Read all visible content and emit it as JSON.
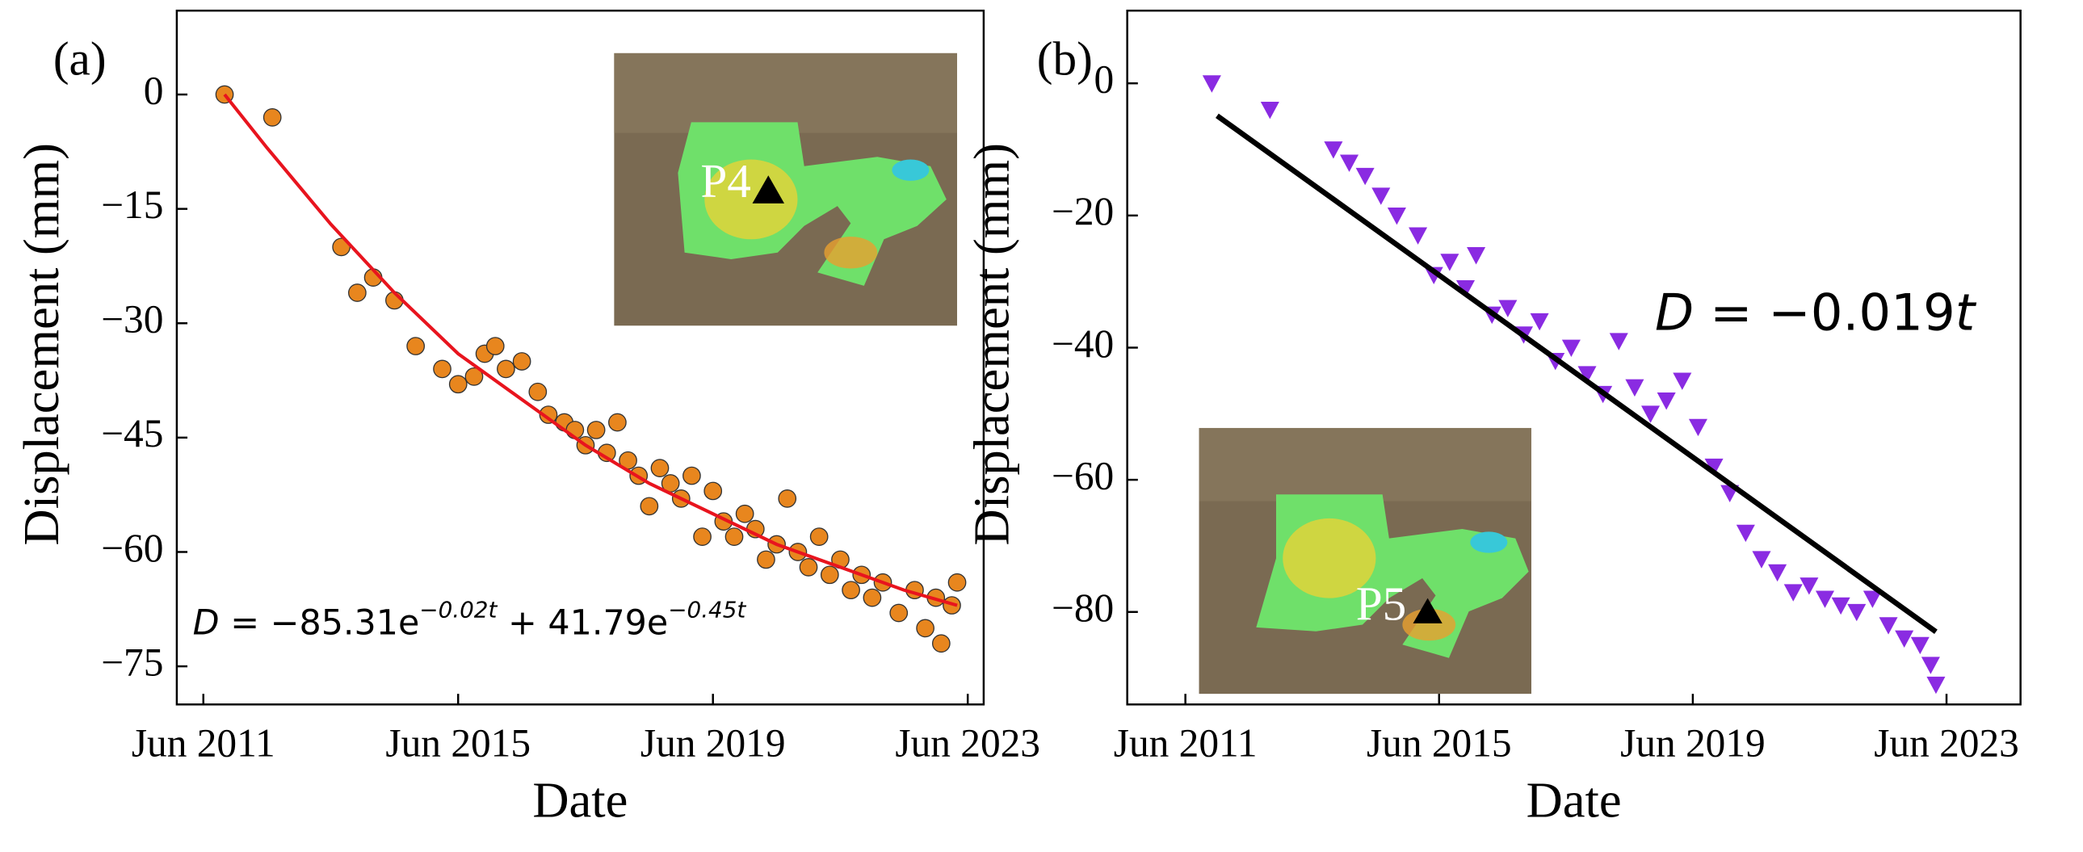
{
  "chart_data": [
    {
      "type": "scatter",
      "panel_label": "(a)",
      "x_label": "Date",
      "y_label": "Displacement (mm)",
      "xlim": [
        "2011-01",
        "2023-09"
      ],
      "ylim": [
        -80,
        11
      ],
      "xticks": [
        {
          "value": "2011-06",
          "label": "Jun 2011"
        },
        {
          "value": "2015-06",
          "label": "Jun 2015"
        },
        {
          "value": "2019-06",
          "label": "Jun 2019"
        },
        {
          "value": "2023-06",
          "label": "Jun 2023"
        }
      ],
      "yticks": [
        0,
        {
          "value": -15,
          "label": "−15"
        },
        {
          "value": -30,
          "label": "−30"
        },
        {
          "value": -45,
          "label": "−45"
        },
        {
          "value": -60,
          "label": "−60"
        },
        {
          "value": -75,
          "label": "−75"
        }
      ],
      "equation": {
        "lhs": "D",
        "rhs1": " = −85.31e",
        "exp1": "−0.02t",
        "rhs2": " + 41.79e",
        "exp2": "−0.45t"
      },
      "inset_label": "P4",
      "series": [
        {
          "type": "scatter",
          "marker": "circle",
          "color": "#e8861e",
          "x": [
            "2011-10",
            "2012-07",
            "2013-08",
            "2013-11",
            "2014-02",
            "2014-06",
            "2014-10",
            "2015-03",
            "2015-06",
            "2015-09",
            "2015-11",
            "2016-01",
            "2016-03",
            "2016-06",
            "2016-09",
            "2016-11",
            "2017-02",
            "2017-04",
            "2017-06",
            "2017-08",
            "2017-10",
            "2017-12",
            "2018-02",
            "2018-04",
            "2018-06",
            "2018-08",
            "2018-10",
            "2018-12",
            "2019-02",
            "2019-04",
            "2019-06",
            "2019-08",
            "2019-10",
            "2019-12",
            "2020-02",
            "2020-04",
            "2020-06",
            "2020-08",
            "2020-10",
            "2020-12",
            "2021-02",
            "2021-04",
            "2021-06",
            "2021-08",
            "2021-10",
            "2021-12",
            "2022-02",
            "2022-05",
            "2022-08",
            "2022-10",
            "2022-12",
            "2023-01",
            "2023-03",
            "2023-04"
          ],
          "values": [
            0,
            -3,
            -20,
            -26,
            -24,
            -27,
            -33,
            -36,
            -38,
            -37,
            -34,
            -33,
            -36,
            -35,
            -39,
            -42,
            -43,
            -44,
            -46,
            -44,
            -47,
            -43,
            -48,
            -50,
            -54,
            -49,
            -51,
            -53,
            -50,
            -58,
            -52,
            -56,
            -58,
            -55,
            -57,
            -61,
            -59,
            -53,
            -60,
            -62,
            -58,
            -63,
            -61,
            -65,
            -63,
            -66,
            -64,
            -68,
            -65,
            -70,
            -66,
            -72,
            -67,
            -64
          ]
        },
        {
          "type": "line",
          "color": "#e8141e",
          "x": [
            "2011-10",
            "2012-06",
            "2013-06",
            "2014-06",
            "2015-06",
            "2016-06",
            "2017-06",
            "2018-06",
            "2019-06",
            "2020-06",
            "2021-06",
            "2022-06",
            "2023-04"
          ],
          "values": [
            0,
            -7,
            -17,
            -26,
            -34,
            -40,
            -46,
            -51,
            -55,
            -59,
            -62,
            -65,
            -67
          ]
        }
      ]
    },
    {
      "type": "scatter",
      "panel_label": "(b)",
      "x_label": "Date",
      "y_label": "Displacement (mm)",
      "xlim": [
        "2010-07",
        "2024-08"
      ],
      "ylim": [
        -94,
        11
      ],
      "xticks": [
        {
          "value": "2011-06",
          "label": "Jun 2011"
        },
        {
          "value": "2015-06",
          "label": "Jun 2015"
        },
        {
          "value": "2019-06",
          "label": "Jun 2019"
        },
        {
          "value": "2023-06",
          "label": "Jun 2023"
        }
      ],
      "yticks": [
        0,
        {
          "value": -20,
          "label": "−20"
        },
        {
          "value": -40,
          "label": "−40"
        },
        {
          "value": -60,
          "label": "−60"
        },
        {
          "value": -80,
          "label": "−80"
        }
      ],
      "equation": {
        "lhs": "D",
        "rhs1": " = −0.019",
        "var": "t"
      },
      "inset_label": "P5",
      "series": [
        {
          "type": "scatter",
          "marker": "triangle-down",
          "color": "#8a2be2",
          "x": [
            "2011-11",
            "2012-10",
            "2013-10",
            "2014-01",
            "2014-04",
            "2014-07",
            "2014-10",
            "2015-02",
            "2015-05",
            "2015-08",
            "2015-11",
            "2016-01",
            "2016-04",
            "2016-07",
            "2016-10",
            "2017-01",
            "2017-04",
            "2017-07",
            "2017-10",
            "2018-01",
            "2018-04",
            "2018-07",
            "2018-10",
            "2019-01",
            "2019-04",
            "2019-07",
            "2019-10",
            "2020-01",
            "2020-04",
            "2020-07",
            "2020-10",
            "2021-01",
            "2021-04",
            "2021-07",
            "2021-10",
            "2022-01",
            "2022-04",
            "2022-07",
            "2022-10",
            "2023-01",
            "2023-03",
            "2023-04"
          ],
          "values": [
            0,
            -4,
            -10,
            -12,
            -14,
            -17,
            -20,
            -23,
            -29,
            -27,
            -31,
            -26,
            -35,
            -34,
            -38,
            -36,
            -42,
            -40,
            -44,
            -47,
            -39,
            -46,
            -50,
            -48,
            -45,
            -52,
            -58,
            -62,
            -68,
            -72,
            -74,
            -77,
            -76,
            -78,
            -79,
            -80,
            -78,
            -82,
            -84,
            -85,
            -88,
            -91
          ]
        },
        {
          "type": "line",
          "color": "#000000",
          "x": [
            "2011-12",
            "2023-04"
          ],
          "values": [
            -4.9,
            -83
          ]
        }
      ]
    }
  ]
}
